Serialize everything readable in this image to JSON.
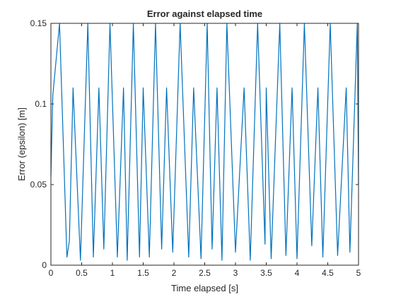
{
  "chart_data": {
    "type": "line",
    "title": "Error against elapsed time",
    "xlabel": "Time elapsed [s]",
    "ylabel": "Error (epsilon) [m]",
    "xlim": [
      0,
      5
    ],
    "ylim": [
      0,
      0.15
    ],
    "x_ticks": [
      0,
      0.5,
      1,
      1.5,
      2,
      2.5,
      3,
      3.5,
      4,
      4.5,
      5
    ],
    "x_tick_labels": [
      "0",
      "0.5",
      "1",
      "1.5",
      "2",
      "2.5",
      "3",
      "3.5",
      "4",
      "4.5",
      "5"
    ],
    "y_ticks": [
      0,
      0.05,
      0.1,
      0.15
    ],
    "y_tick_labels": [
      "0",
      "0.05",
      "0.1",
      "0.15"
    ],
    "grid": false,
    "line_color": "#0072BD",
    "series": [
      {
        "x": [
          0,
          0.03,
          0.14,
          0.26,
          0.3,
          0.36,
          0.48,
          0.6,
          0.69,
          0.78,
          0.86,
          0.96,
          1.08,
          1.18,
          1.24,
          1.34,
          1.44,
          1.5,
          1.6,
          1.7,
          1.8,
          1.88,
          1.98,
          2.1,
          2.24,
          2.32,
          2.44,
          2.54,
          2.62,
          2.7,
          2.78,
          2.86,
          3.0,
          3.14,
          3.24,
          3.36,
          3.48,
          3.5,
          3.58,
          3.72,
          3.82,
          3.92,
          4.0,
          4.12,
          4.24,
          4.34,
          4.42,
          4.54,
          4.66,
          4.8,
          4.86,
          4.98,
          5.0
        ],
        "y": [
          0.055,
          0.105,
          0.15,
          0.005,
          0.015,
          0.11,
          0.003,
          0.15,
          0.005,
          0.11,
          0.01,
          0.15,
          0.005,
          0.11,
          0.003,
          0.15,
          0.005,
          0.11,
          0.005,
          0.15,
          0.01,
          0.11,
          0.008,
          0.15,
          0.005,
          0.11,
          0.004,
          0.15,
          0.01,
          0.11,
          0.003,
          0.15,
          0.008,
          0.11,
          0.003,
          0.15,
          0.013,
          0.11,
          0.004,
          0.15,
          0.006,
          0.11,
          0.004,
          0.15,
          0.012,
          0.11,
          0.005,
          0.15,
          0.006,
          0.11,
          0.008,
          0.15,
          0.05
        ]
      }
    ]
  }
}
